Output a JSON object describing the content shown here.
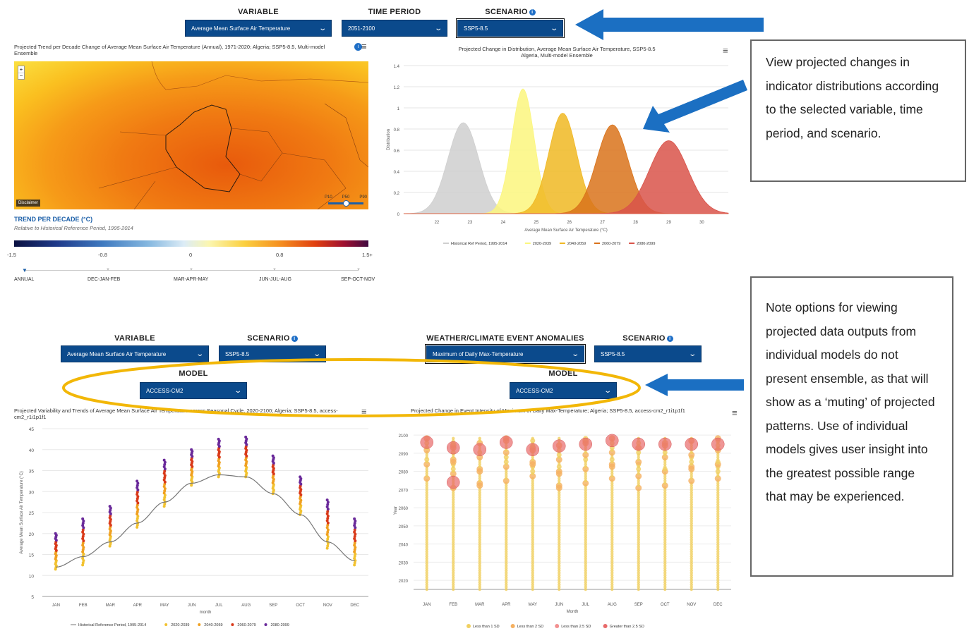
{
  "top": {
    "variable": {
      "label": "VARIABLE",
      "value": "Average Mean Surface Air Temperature"
    },
    "time_period": {
      "label": "TIME PERIOD",
      "value": "2051-2100"
    },
    "scenario": {
      "label": "SCENARIO",
      "value": "SSP5-8.5"
    }
  },
  "map": {
    "title": "Projected Trend per Decade Change of Average Mean Surface Air Temperature (Annual), 1971-2020; Algeria; SSP5-8.5, Multi-model Ensemble",
    "zoom_in": "+",
    "zoom_out": "−",
    "disclaimer": "Disclaimer",
    "percentile_labels": [
      "P10",
      "P50",
      "P90"
    ],
    "legend_title": "TREND PER DECADE (°C)",
    "legend_subtitle": "Relative to Historical Reference Period, 1995-2014",
    "scale_ticks": [
      "-1.5",
      "-0.8",
      "0",
      "0.8",
      "1.5+"
    ],
    "seasons": [
      "ANNUAL",
      "DEC-JAN-FEB",
      "MAR-APR-MAY",
      "JUN-JUL-AUG",
      "SEP-OCT-NOV"
    ],
    "selected_season": "ANNUAL"
  },
  "callouts": {
    "distribution": "View projected changes in indicator distributions according to the selected variable, time period, and scenario.",
    "models": "Note options for viewing projected data outputs from individual models do not present ensemble, as that will show as a ‘muting’ of projected patterns. Use of individual models gives user insight into the greatest possible range that may be experienced."
  },
  "bottom": {
    "left": {
      "variable": {
        "label": "VARIABLE",
        "value": "Average Mean Surface Air Temperature"
      },
      "scenario": {
        "label": "SCENARIO",
        "value": "SSP5-8.5"
      },
      "model": {
        "label": "MODEL",
        "value": "ACCESS-CM2"
      }
    },
    "right": {
      "anomaly": {
        "label": "WEATHER/CLIMATE EVENT ANOMALIES",
        "value": "Maximum of Daily Max-Temperature"
      },
      "scenario": {
        "label": "SCENARIO",
        "value": "SSP5-8.5"
      },
      "model": {
        "label": "MODEL",
        "value": "ACCESS-CM2"
      }
    }
  },
  "chart_data": [
    {
      "type": "area",
      "title": "Projected Change in Distribution, Average Mean Surface Air Temperature, SSP5-8.5",
      "subtitle": "Algeria, Multi-model Ensemble",
      "xlabel": "Average Mean Surface Air Temperature (°C)",
      "ylabel": "Distribution",
      "xlim": [
        21,
        30.8
      ],
      "ylim": [
        0,
        1.4
      ],
      "xticks": [
        "22",
        "23",
        "24",
        "25",
        "26",
        "27",
        "28",
        "29",
        "30"
      ],
      "yticks": [
        "0",
        "0.2",
        "0.4",
        "0.6",
        "0.8",
        "1",
        "1.2",
        "1.4"
      ],
      "series": [
        {
          "name": "Historical Ref Period, 1995-2014",
          "mean": 22.8,
          "peak": 0.86,
          "color": "#cfcfcf"
        },
        {
          "name": "2020-2039",
          "mean": 24.6,
          "peak": 1.18,
          "color": "#fbf67e"
        },
        {
          "name": "2040-2059",
          "mean": 25.8,
          "peak": 0.95,
          "color": "#f0b823"
        },
        {
          "name": "2060-2079",
          "mean": 27.3,
          "peak": 0.84,
          "color": "#d9731b"
        },
        {
          "name": "2080-2099",
          "mean": 29.0,
          "peak": 0.69,
          "color": "#d9534a"
        }
      ]
    },
    {
      "type": "line",
      "title": "Projected Variability and Trends of Average Mean Surface Air Temperature across Seasonal Cycle, 2020-2100; Algeria; SSP5-8.5, access-cm2_r1i1p1f1",
      "xlabel": "month",
      "ylabel": "Average Mean Surface Air Temperature (°C)",
      "ylim": [
        5,
        45
      ],
      "yticks": [
        "5",
        "10",
        "15",
        "20",
        "25",
        "30",
        "35",
        "40",
        "45"
      ],
      "categories": [
        "JAN",
        "FEB",
        "MAR",
        "APR",
        "MAY",
        "JUN",
        "JUL",
        "AUG",
        "SEP",
        "OCT",
        "NOV",
        "DEC"
      ],
      "historical": [
        12,
        14.5,
        18,
        22.5,
        27.5,
        32,
        34,
        33.5,
        29.5,
        24.5,
        18,
        13.5
      ],
      "ranges": [
        [
          11.5,
          20
        ],
        [
          12.5,
          23.5
        ],
        [
          17,
          26.5
        ],
        [
          21.5,
          32.5
        ],
        [
          26.5,
          37.5
        ],
        [
          31.5,
          40
        ],
        [
          33.5,
          42.5
        ],
        [
          33.5,
          43
        ],
        [
          29.5,
          38.5
        ],
        [
          24.5,
          33.5
        ],
        [
          16.5,
          28
        ],
        [
          12.5,
          23.5
        ]
      ],
      "series": [
        {
          "name": "Historical Reference Period, 1995-2014",
          "color": "#777777"
        },
        {
          "name": "2020-2039",
          "color": "#f2c230"
        },
        {
          "name": "2040-2059",
          "color": "#f0a020"
        },
        {
          "name": "2060-2079",
          "color": "#d93a1a"
        },
        {
          "name": "2080-2099",
          "color": "#6a2a9a"
        }
      ]
    },
    {
      "type": "scatter",
      "title": "Projected Change in Event Intensity of Maximum of Daily Max-Temperature; Algeria; SSP5-8.5, access-cm2_r1i1p1f1",
      "xlabel": "Month",
      "ylabel": "Year",
      "ylim": [
        2015,
        2102
      ],
      "yticks": [
        "2020",
        "2030",
        "2040",
        "2050",
        "2060",
        "2070",
        "2080",
        "2090",
        "2100"
      ],
      "categories": [
        "JAN",
        "FEB",
        "MAR",
        "APR",
        "MAY",
        "JUN",
        "JUL",
        "AUG",
        "SEP",
        "OCT",
        "NOV",
        "DEC"
      ],
      "series": [
        {
          "name": "Less than 1 SD",
          "color": "#f0d060"
        },
        {
          "name": "Less than 2 SD",
          "color": "#f5b060"
        },
        {
          "name": "Less than 2.5 SD",
          "color": "#f29090"
        },
        {
          "name": "Greater than 2.5 SD",
          "color": "#e86a6a"
        }
      ],
      "large_events": [
        {
          "month": "JAN",
          "year": 2096
        },
        {
          "month": "FEB",
          "year": 2093
        },
        {
          "month": "FEB",
          "year": 2074
        },
        {
          "month": "MAR",
          "year": 2092
        },
        {
          "month": "APR",
          "year": 2096
        },
        {
          "month": "MAY",
          "year": 2092
        },
        {
          "month": "JUN",
          "year": 2094
        },
        {
          "month": "JUL",
          "year": 2095
        },
        {
          "month": "AUG",
          "year": 2097
        },
        {
          "month": "SEP",
          "year": 2095
        },
        {
          "month": "OCT",
          "year": 2095
        },
        {
          "month": "NOV",
          "year": 2095
        },
        {
          "month": "DEC",
          "year": 2095
        }
      ]
    }
  ]
}
